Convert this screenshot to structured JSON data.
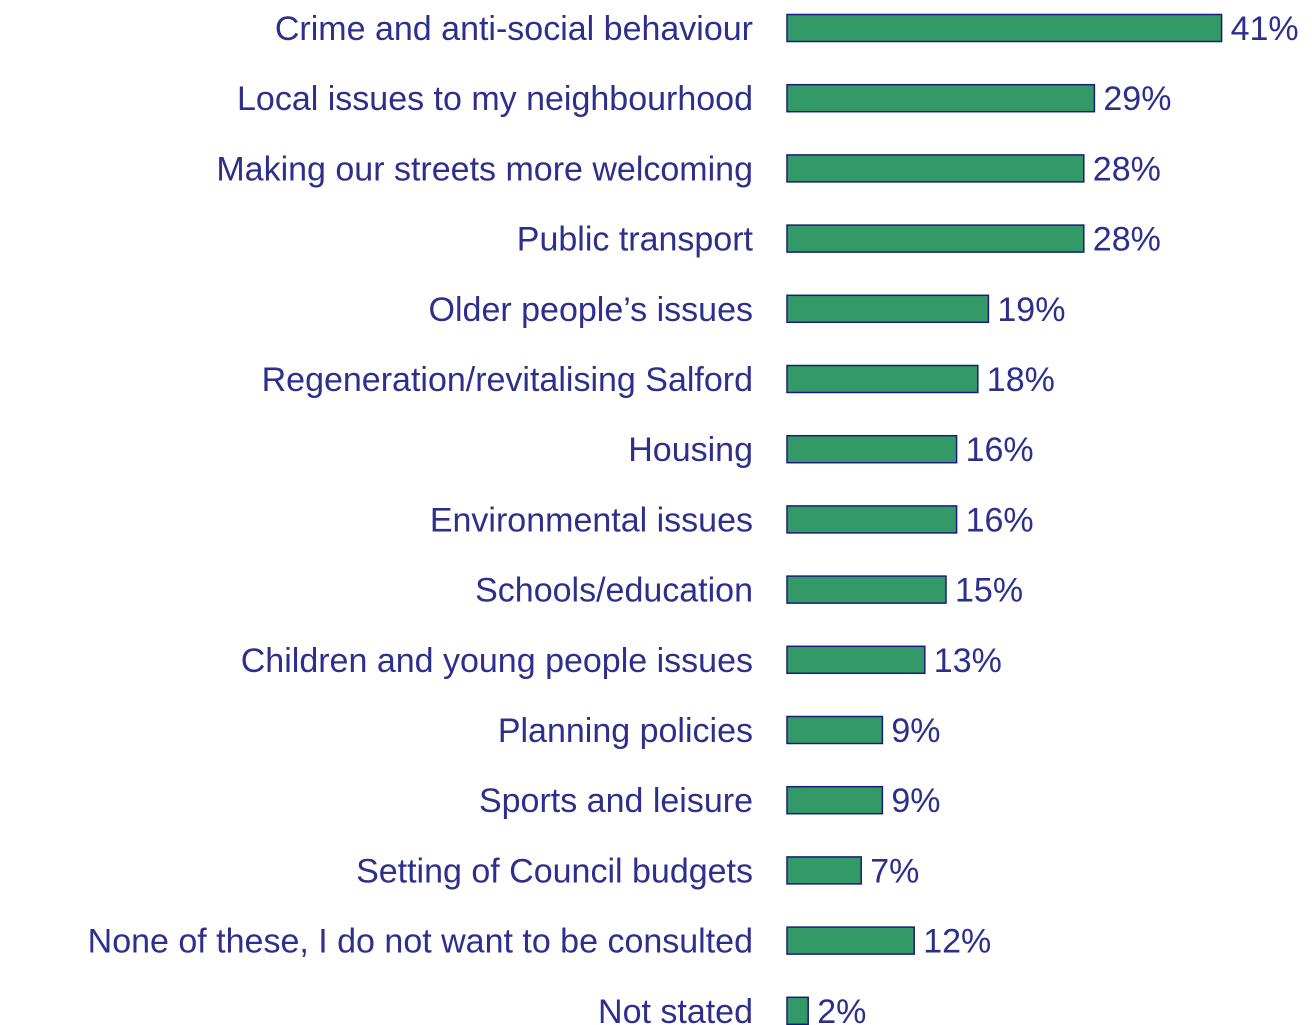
{
  "chart_data": {
    "type": "bar",
    "orientation": "horizontal",
    "categories": [
      "Crime and anti-social behaviour",
      "Local issues to my neighbourhood",
      "Making our streets more welcoming",
      "Public transport",
      "Older people’s issues",
      "Regeneration/revitalising Salford",
      "Housing",
      "Environmental issues",
      "Schools/education",
      "Children and young people issues",
      "Planning policies",
      "Sports and leisure",
      "Setting of Council budgets",
      "None of these, I do not want to be consulted",
      "Not stated"
    ],
    "values": [
      41,
      29,
      28,
      28,
      19,
      18,
      16,
      16,
      15,
      13,
      9,
      9,
      7,
      12,
      2
    ],
    "value_labels": [
      "41%",
      "29%",
      "28%",
      "28%",
      "19%",
      "18%",
      "16%",
      "16%",
      "15%",
      "13%",
      "9%",
      "9%",
      "7%",
      "12%",
      "2%"
    ],
    "unit": "%",
    "grid": false,
    "legend": "none"
  },
  "colors": {
    "bar_fill": "#339966",
    "bar_stroke": "#1a1a80",
    "text": "#2e2e8c",
    "background": "#ffffff"
  }
}
